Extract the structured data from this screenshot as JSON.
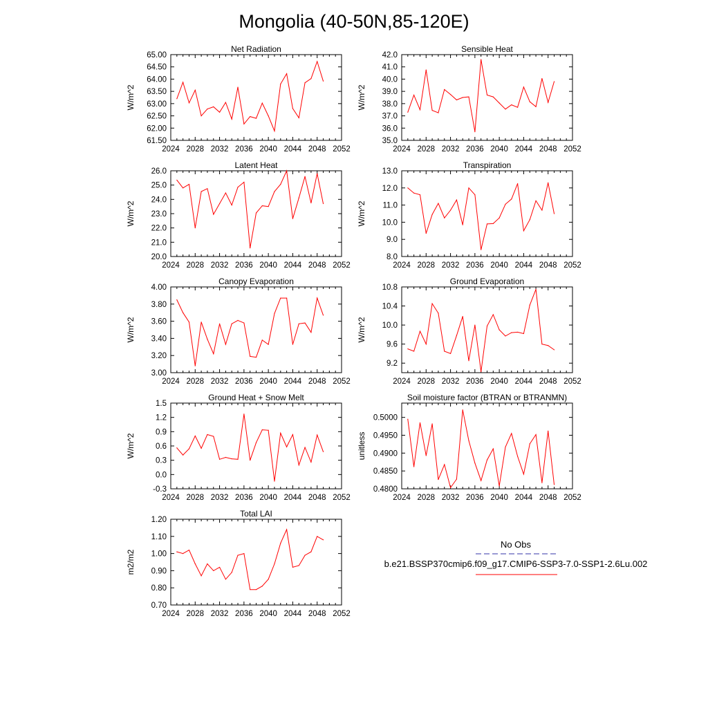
{
  "figure": {
    "title": "Mongolia (40-50N,85-120E)"
  },
  "legend": {
    "obs_label": "No Obs",
    "obs_color": "#3333aa",
    "model_label": "b.e21.BSSP370cmip6.f09_g17.CMIP6-SSP3-7.0-SSP1-2.6Lu.002",
    "model_color": "#ff0000"
  },
  "chart_data": [
    {
      "type": "line",
      "title": "Net Radiation",
      "ylabel": "W/m^2",
      "xlim": [
        2024,
        2052
      ],
      "xticks": [
        "2024",
        "2028",
        "2032",
        "2036",
        "2040",
        "2044",
        "2048",
        "2052"
      ],
      "ylim": [
        61.5,
        65.0
      ],
      "yticks": [
        "61.50",
        "62.00",
        "62.50",
        "63.00",
        "63.50",
        "64.00",
        "64.50",
        "65.00"
      ],
      "x": [
        2025,
        2026,
        2027,
        2028,
        2029,
        2030,
        2031,
        2032,
        2033,
        2034,
        2035,
        2036,
        2037,
        2038,
        2039,
        2040,
        2041,
        2042,
        2043,
        2044,
        2045,
        2046,
        2047,
        2048,
        2049
      ],
      "series": [
        {
          "color": "#ff0000",
          "values": [
            63.2,
            63.87,
            63.03,
            63.55,
            62.5,
            62.78,
            62.87,
            62.65,
            63.05,
            62.37,
            63.67,
            62.17,
            62.47,
            62.4,
            63.02,
            62.5,
            61.88,
            63.8,
            64.22,
            62.8,
            62.42,
            63.85,
            64.02,
            64.72,
            63.92
          ]
        }
      ]
    },
    {
      "type": "line",
      "title": "Sensible Heat",
      "ylabel": "W/m^2",
      "xlim": [
        2024,
        2052
      ],
      "xticks": [
        "2024",
        "2028",
        "2032",
        "2036",
        "2040",
        "2044",
        "2048",
        "2052"
      ],
      "ylim": [
        35.0,
        42.0
      ],
      "yticks": [
        "35.0",
        "36.0",
        "37.0",
        "38.0",
        "39.0",
        "40.0",
        "41.0",
        "42.0"
      ],
      "x": [
        2025,
        2026,
        2027,
        2028,
        2029,
        2030,
        2031,
        2032,
        2033,
        2034,
        2035,
        2036,
        2037,
        2038,
        2039,
        2040,
        2041,
        2042,
        2043,
        2044,
        2045,
        2046,
        2047,
        2048,
        2049
      ],
      "series": [
        {
          "color": "#ff0000",
          "values": [
            37.3,
            38.7,
            37.5,
            40.75,
            37.45,
            37.25,
            39.15,
            38.75,
            38.3,
            38.5,
            38.55,
            35.7,
            41.6,
            38.7,
            38.55,
            38.05,
            37.55,
            37.9,
            37.7,
            39.35,
            38.15,
            37.75,
            40.05,
            38.1,
            39.8
          ]
        }
      ]
    },
    {
      "type": "line",
      "title": "Latent Heat",
      "ylabel": "W/m^2",
      "xlim": [
        2024,
        2052
      ],
      "xticks": [
        "2024",
        "2028",
        "2032",
        "2036",
        "2040",
        "2044",
        "2048",
        "2052"
      ],
      "ylim": [
        20.0,
        26.0
      ],
      "yticks": [
        "20.0",
        "21.0",
        "22.0",
        "23.0",
        "24.0",
        "25.0",
        "26.0"
      ],
      "x": [
        2025,
        2026,
        2027,
        2028,
        2029,
        2030,
        2031,
        2032,
        2033,
        2034,
        2035,
        2036,
        2037,
        2038,
        2039,
        2040,
        2041,
        2042,
        2043,
        2044,
        2045,
        2046,
        2047,
        2048,
        2049
      ],
      "series": [
        {
          "color": "#ff0000",
          "values": [
            25.35,
            24.8,
            25.05,
            22.0,
            24.55,
            24.75,
            22.95,
            23.7,
            24.45,
            23.6,
            24.85,
            25.2,
            20.6,
            23.05,
            23.55,
            23.5,
            24.55,
            25.05,
            26.0,
            22.65,
            24.1,
            25.6,
            23.75,
            25.8,
            23.7
          ]
        }
      ]
    },
    {
      "type": "line",
      "title": "Transpiration",
      "ylabel": "W/m^2",
      "xlim": [
        2024,
        2052
      ],
      "xticks": [
        "2024",
        "2028",
        "2032",
        "2036",
        "2040",
        "2044",
        "2048",
        "2052"
      ],
      "ylim": [
        8.0,
        13.0
      ],
      "yticks": [
        "8.0",
        "9.0",
        "10.0",
        "11.0",
        "12.0",
        "13.0"
      ],
      "x": [
        2025,
        2026,
        2027,
        2028,
        2029,
        2030,
        2031,
        2032,
        2033,
        2034,
        2035,
        2036,
        2037,
        2038,
        2039,
        2040,
        2041,
        2042,
        2043,
        2044,
        2045,
        2046,
        2047,
        2048,
        2049
      ],
      "series": [
        {
          "color": "#ff0000",
          "values": [
            12.0,
            11.7,
            11.6,
            9.35,
            10.45,
            11.1,
            10.25,
            10.7,
            11.3,
            9.85,
            12.0,
            11.6,
            8.4,
            9.9,
            9.92,
            10.25,
            11.05,
            11.35,
            12.25,
            9.5,
            10.15,
            11.25,
            10.7,
            12.3,
            10.5
          ]
        }
      ]
    },
    {
      "type": "line",
      "title": "Canopy Evaporation",
      "ylabel": "W/m^2",
      "xlim": [
        2024,
        2052
      ],
      "xticks": [
        "2024",
        "2028",
        "2032",
        "2036",
        "2040",
        "2044",
        "2048",
        "2052"
      ],
      "ylim": [
        3.0,
        4.0
      ],
      "yticks": [
        "3.00",
        "3.20",
        "3.40",
        "3.60",
        "3.80",
        "4.00"
      ],
      "x": [
        2025,
        2026,
        2027,
        2028,
        2029,
        2030,
        2031,
        2032,
        2033,
        2034,
        2035,
        2036,
        2037,
        2038,
        2039,
        2040,
        2041,
        2042,
        2043,
        2044,
        2045,
        2046,
        2047,
        2048,
        2049
      ],
      "series": [
        {
          "color": "#ff0000",
          "values": [
            3.85,
            3.7,
            3.59,
            3.08,
            3.59,
            3.39,
            3.22,
            3.57,
            3.33,
            3.57,
            3.61,
            3.58,
            3.19,
            3.18,
            3.38,
            3.33,
            3.69,
            3.87,
            3.87,
            3.33,
            3.57,
            3.58,
            3.47,
            3.87,
            3.67
          ]
        }
      ]
    },
    {
      "type": "line",
      "title": "Ground Evaporation",
      "ylabel": "W/m^2",
      "xlim": [
        2024,
        2052
      ],
      "xticks": [
        "2024",
        "2028",
        "2032",
        "2036",
        "2040",
        "2044",
        "2048",
        "2052"
      ],
      "ylim": [
        9.0,
        10.8
      ],
      "yticks": [
        "9.2",
        "9.6",
        "10.0",
        "10.4",
        "10.8"
      ],
      "ytickvals": [
        9.2,
        9.6,
        10.0,
        10.4,
        10.8
      ],
      "x": [
        2025,
        2026,
        2027,
        2028,
        2029,
        2030,
        2031,
        2032,
        2033,
        2034,
        2035,
        2036,
        2037,
        2038,
        2039,
        2040,
        2041,
        2042,
        2043,
        2044,
        2045,
        2046,
        2047,
        2048,
        2049
      ],
      "series": [
        {
          "color": "#ff0000",
          "values": [
            9.5,
            9.45,
            9.87,
            9.6,
            10.45,
            10.25,
            9.45,
            9.4,
            9.78,
            10.18,
            9.25,
            10.0,
            9.02,
            9.98,
            10.22,
            9.9,
            9.77,
            9.84,
            9.85,
            9.82,
            10.42,
            10.75,
            9.6,
            9.57,
            9.48
          ]
        }
      ]
    },
    {
      "type": "line",
      "title": "Ground Heat + Snow Melt",
      "ylabel": "W/m^2",
      "xlim": [
        2024,
        2052
      ],
      "xticks": [
        "2024",
        "2028",
        "2032",
        "2036",
        "2040",
        "2044",
        "2048",
        "2052"
      ],
      "ylim": [
        -0.3,
        1.5
      ],
      "yticks": [
        "-0.3",
        "0.0",
        "0.3",
        "0.6",
        "0.9",
        "1.2",
        "1.5"
      ],
      "x": [
        2025,
        2026,
        2027,
        2028,
        2029,
        2030,
        2031,
        2032,
        2033,
        2034,
        2035,
        2036,
        2037,
        2038,
        2039,
        2040,
        2041,
        2042,
        2043,
        2044,
        2045,
        2046,
        2047,
        2048,
        2049
      ],
      "series": [
        {
          "color": "#ff0000",
          "values": [
            0.56,
            0.41,
            0.54,
            0.81,
            0.55,
            0.84,
            0.8,
            0.32,
            0.36,
            0.33,
            0.32,
            1.27,
            0.3,
            0.67,
            0.94,
            0.93,
            -0.14,
            0.87,
            0.58,
            0.84,
            0.2,
            0.57,
            0.26,
            0.83,
            0.48
          ]
        }
      ]
    },
    {
      "type": "line",
      "title": "Soil moisture factor (BTRAN or BTRANMN)",
      "ylabel": "unitless",
      "xlim": [
        2024,
        2052
      ],
      "xticks": [
        "2024",
        "2028",
        "2032",
        "2036",
        "2040",
        "2044",
        "2048",
        "2052"
      ],
      "ylim": [
        0.48,
        0.504
      ],
      "yticks": [
        "0.4800",
        "0.4850",
        "0.4900",
        "0.4950",
        "0.5000"
      ],
      "ytickvals": [
        0.48,
        0.485,
        0.49,
        0.495,
        0.5
      ],
      "x": [
        2025,
        2026,
        2027,
        2028,
        2029,
        2030,
        2031,
        2032,
        2033,
        2034,
        2035,
        2036,
        2037,
        2038,
        2039,
        2040,
        2041,
        2042,
        2043,
        2044,
        2045,
        2046,
        2047,
        2048,
        2049
      ],
      "series": [
        {
          "color": "#ff0000",
          "values": [
            0.4995,
            0.4862,
            0.4985,
            0.4893,
            0.4982,
            0.4826,
            0.4868,
            0.4803,
            0.4827,
            0.5021,
            0.4935,
            0.4872,
            0.4823,
            0.4881,
            0.4912,
            0.4808,
            0.4917,
            0.4955,
            0.4891,
            0.4841,
            0.4926,
            0.4952,
            0.4817,
            0.4962,
            0.4812
          ]
        }
      ]
    },
    {
      "type": "line",
      "title": "Total LAI",
      "ylabel": "m2/m2",
      "xlim": [
        2024,
        2052
      ],
      "xticks": [
        "2024",
        "2028",
        "2032",
        "2036",
        "2040",
        "2044",
        "2048",
        "2052"
      ],
      "ylim": [
        0.7,
        1.2
      ],
      "yticks": [
        "0.70",
        "0.80",
        "0.90",
        "1.00",
        "1.10",
        "1.20"
      ],
      "x": [
        2025,
        2026,
        2027,
        2028,
        2029,
        2030,
        2031,
        2032,
        2033,
        2034,
        2035,
        2036,
        2037,
        2038,
        2039,
        2040,
        2041,
        2042,
        2043,
        2044,
        2045,
        2046,
        2047,
        2048,
        2049
      ],
      "series": [
        {
          "color": "#ff0000",
          "values": [
            1.01,
            1.0,
            1.02,
            0.94,
            0.87,
            0.94,
            0.9,
            0.92,
            0.85,
            0.89,
            0.99,
            1.0,
            0.79,
            0.79,
            0.81,
            0.85,
            0.94,
            1.06,
            1.14,
            0.92,
            0.93,
            0.99,
            1.01,
            1.1,
            1.08
          ]
        }
      ]
    }
  ]
}
